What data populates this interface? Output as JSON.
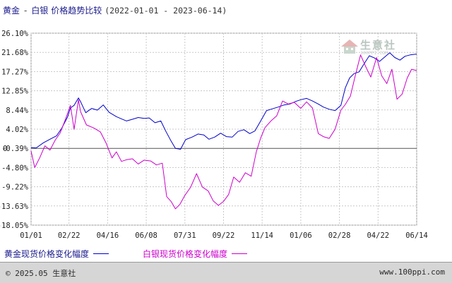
{
  "header": {
    "title_a": "黄金",
    "separator": "-",
    "title_b": "白银",
    "title_c": "价格趋势比较",
    "date_range": "(2022-01-01 - 2023-06-14)"
  },
  "watermark": {
    "name": "生意社",
    "url": "100PPI.COM"
  },
  "legend": {
    "gold": "黄金现货价格变化幅度",
    "silver": "白银现货价格变化幅度"
  },
  "footer": {
    "copyright": "© 2025.05 生意社",
    "website": "www.100ppi.com"
  },
  "colors": {
    "gold": "#0000cc",
    "silver": "#cc00cc",
    "grid": "#c8c8c8",
    "zero_line": "#555555"
  },
  "chart_data": {
    "type": "line",
    "y_ticks": [
      "26.10%",
      "21.68%",
      "17.27%",
      "12.85%",
      "8.44%",
      "4.02%",
      "-0.39%",
      "-4.80%",
      "-9.22%",
      "-13.63%",
      "-18.05%"
    ],
    "y_tick_values": [
      26.1,
      21.68,
      17.27,
      12.85,
      8.44,
      4.02,
      -0.39,
      -4.8,
      -9.22,
      -13.63,
      -18.05
    ],
    "ylim": [
      -18.05,
      26.1
    ],
    "zero_label": "0",
    "x_ticks": [
      "01/01",
      "02/22",
      "04/16",
      "06/08",
      "07/31",
      "09/22",
      "11/14",
      "01/06",
      "02/28",
      "04/22",
      "06/14"
    ],
    "x_tick_dates": [
      "2022-01-01",
      "2022-02-22",
      "2022-04-16",
      "2022-06-08",
      "2022-07-31",
      "2022-09-22",
      "2022-11-14",
      "2023-01-06",
      "2023-02-28",
      "2023-04-22",
      "2023-06-14"
    ],
    "grid": true,
    "series": [
      {
        "name": "黄金现货价格变化幅度",
        "color": "#0000cc",
        "x": [
          "2022-01-01",
          "2022-01-08",
          "2022-01-18",
          "2022-01-28",
          "2022-02-05",
          "2022-02-12",
          "2022-02-20",
          "2022-02-24",
          "2022-03-01",
          "2022-03-07",
          "2022-03-10",
          "2022-03-17",
          "2022-03-25",
          "2022-04-02",
          "2022-04-10",
          "2022-04-18",
          "2022-04-28",
          "2022-05-05",
          "2022-05-12",
          "2022-05-20",
          "2022-05-28",
          "2022-06-05",
          "2022-06-12",
          "2022-06-20",
          "2022-06-28",
          "2022-07-05",
          "2022-07-12",
          "2022-07-18",
          "2022-07-25",
          "2022-08-01",
          "2022-08-10",
          "2022-08-18",
          "2022-08-26",
          "2022-09-02",
          "2022-09-10",
          "2022-09-18",
          "2022-09-26",
          "2022-10-04",
          "2022-10-12",
          "2022-10-20",
          "2022-10-28",
          "2022-11-04",
          "2022-11-12",
          "2022-11-20",
          "2022-11-28",
          "2022-12-06",
          "2022-12-14",
          "2022-12-22",
          "2022-12-30",
          "2023-01-06",
          "2023-01-14",
          "2023-01-22",
          "2023-01-30",
          "2023-02-06",
          "2023-02-14",
          "2023-02-22",
          "2023-03-02",
          "2023-03-08",
          "2023-03-14",
          "2023-03-20",
          "2023-03-27",
          "2023-04-03",
          "2023-04-10",
          "2023-04-17",
          "2023-04-24",
          "2023-05-01",
          "2023-05-08",
          "2023-05-15",
          "2023-05-22",
          "2023-05-29",
          "2023-06-05",
          "2023-06-14"
        ],
        "values": [
          -0.2,
          -0.3,
          0.9,
          1.8,
          2.5,
          4.2,
          6.8,
          8.9,
          9.5,
          11.2,
          10.3,
          7.8,
          8.8,
          8.4,
          9.6,
          7.9,
          6.9,
          6.4,
          5.9,
          6.3,
          6.7,
          6.5,
          6.6,
          5.5,
          5.9,
          3.5,
          1.3,
          -0.4,
          -0.6,
          1.6,
          2.2,
          2.9,
          2.7,
          1.7,
          2.2,
          3.1,
          2.3,
          2.2,
          3.5,
          3.9,
          3.0,
          3.6,
          5.9,
          8.3,
          8.7,
          9.1,
          9.6,
          9.8,
          10.4,
          10.8,
          11.1,
          10.5,
          9.8,
          9.1,
          8.6,
          8.3,
          9.5,
          13.5,
          15.8,
          16.8,
          17.2,
          19.1,
          20.9,
          20.4,
          19.6,
          20.6,
          21.6,
          20.5,
          19.9,
          20.8,
          21.1,
          21.3
        ]
      },
      {
        "name": "白银现货价格变化幅度",
        "color": "#cc00cc",
        "x": [
          "2022-01-01",
          "2022-01-06",
          "2022-01-13",
          "2022-01-20",
          "2022-01-27",
          "2022-02-03",
          "2022-02-10",
          "2022-02-17",
          "2022-02-24",
          "2022-03-01",
          "2022-03-07",
          "2022-03-10",
          "2022-03-18",
          "2022-03-28",
          "2022-04-06",
          "2022-04-14",
          "2022-04-22",
          "2022-04-28",
          "2022-05-05",
          "2022-05-12",
          "2022-05-20",
          "2022-05-28",
          "2022-06-05",
          "2022-06-14",
          "2022-06-22",
          "2022-06-30",
          "2022-07-06",
          "2022-07-12",
          "2022-07-18",
          "2022-07-24",
          "2022-07-31",
          "2022-08-08",
          "2022-08-16",
          "2022-08-24",
          "2022-09-01",
          "2022-09-08",
          "2022-09-15",
          "2022-09-22",
          "2022-09-29",
          "2022-10-06",
          "2022-10-14",
          "2022-10-22",
          "2022-10-30",
          "2022-11-06",
          "2022-11-12",
          "2022-11-18",
          "2022-11-26",
          "2022-12-04",
          "2022-12-12",
          "2022-12-20",
          "2022-12-28",
          "2023-01-06",
          "2023-01-14",
          "2023-01-22",
          "2023-01-30",
          "2023-02-06",
          "2023-02-14",
          "2023-02-22",
          "2023-03-02",
          "2023-03-08",
          "2023-03-15",
          "2023-03-22",
          "2023-03-29",
          "2023-04-05",
          "2023-04-12",
          "2023-04-20",
          "2023-04-27",
          "2023-05-04",
          "2023-05-11",
          "2023-05-18",
          "2023-05-25",
          "2023-06-01",
          "2023-06-07",
          "2023-06-14"
        ],
        "values": [
          -1.0,
          -4.8,
          -2.5,
          0.2,
          -0.8,
          1.5,
          3.2,
          6.2,
          9.5,
          4.0,
          10.8,
          8.0,
          5.0,
          4.3,
          3.4,
          0.8,
          -2.6,
          -1.2,
          -3.4,
          -3.0,
          -2.8,
          -4.0,
          -3.1,
          -3.3,
          -4.2,
          -3.8,
          -11.5,
          -12.6,
          -14.3,
          -13.3,
          -11.2,
          -9.3,
          -6.2,
          -9.3,
          -10.2,
          -12.5,
          -13.5,
          -12.6,
          -11.0,
          -7.0,
          -8.2,
          -6.0,
          -6.8,
          -1.2,
          2.0,
          4.4,
          5.9,
          7.1,
          10.5,
          9.8,
          10.2,
          8.8,
          10.3,
          8.9,
          3.0,
          2.3,
          1.9,
          4.0,
          8.4,
          9.7,
          11.6,
          16.5,
          21.1,
          18.4,
          16.0,
          20.5,
          16.3,
          14.5,
          17.8,
          10.9,
          12.1,
          15.8,
          17.8,
          17.5
        ]
      }
    ]
  }
}
